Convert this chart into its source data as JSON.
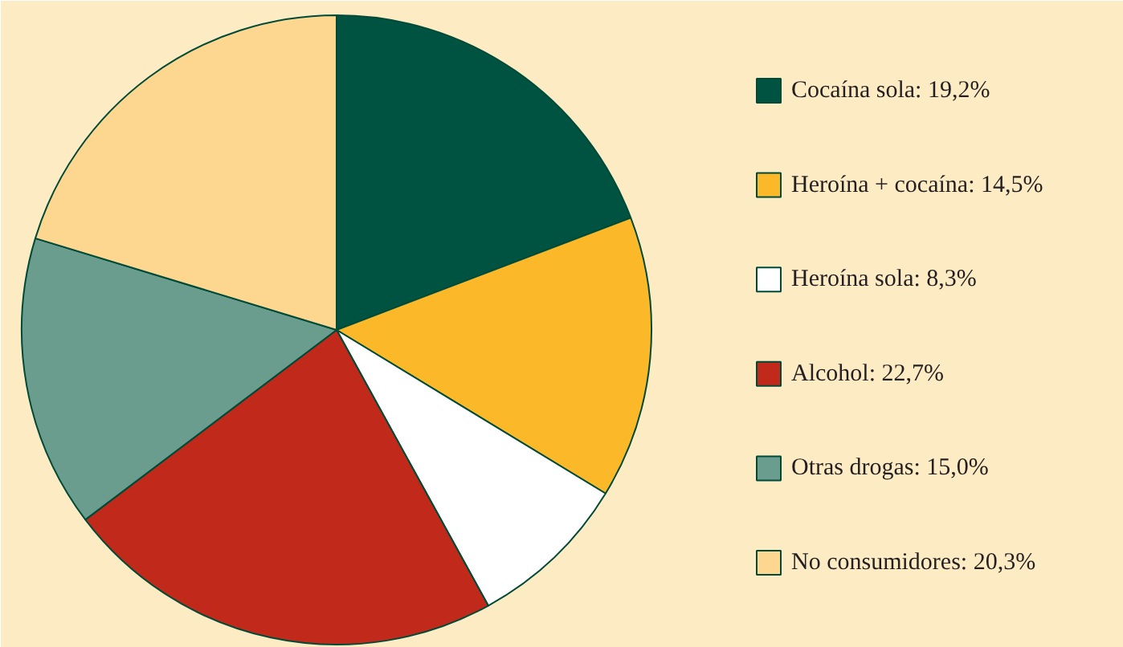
{
  "chart_data": {
    "type": "pie",
    "categories": [
      "Cocaína sola: 19,2%",
      "Heroína + cocaína: 14,5%",
      "Heroína sola: 8,3%",
      "Alcohol: 22,7%",
      "Otras drogas: 15,0%",
      "No consumidores: 20,3%"
    ],
    "values": [
      19.2,
      14.5,
      8.3,
      22.7,
      15.0,
      20.3
    ],
    "colors": [
      "#005341",
      "#fbb829",
      "#ffffff",
      "#c12a1a",
      "#6a9d8d",
      "#fdd690"
    ],
    "legend": "right"
  }
}
